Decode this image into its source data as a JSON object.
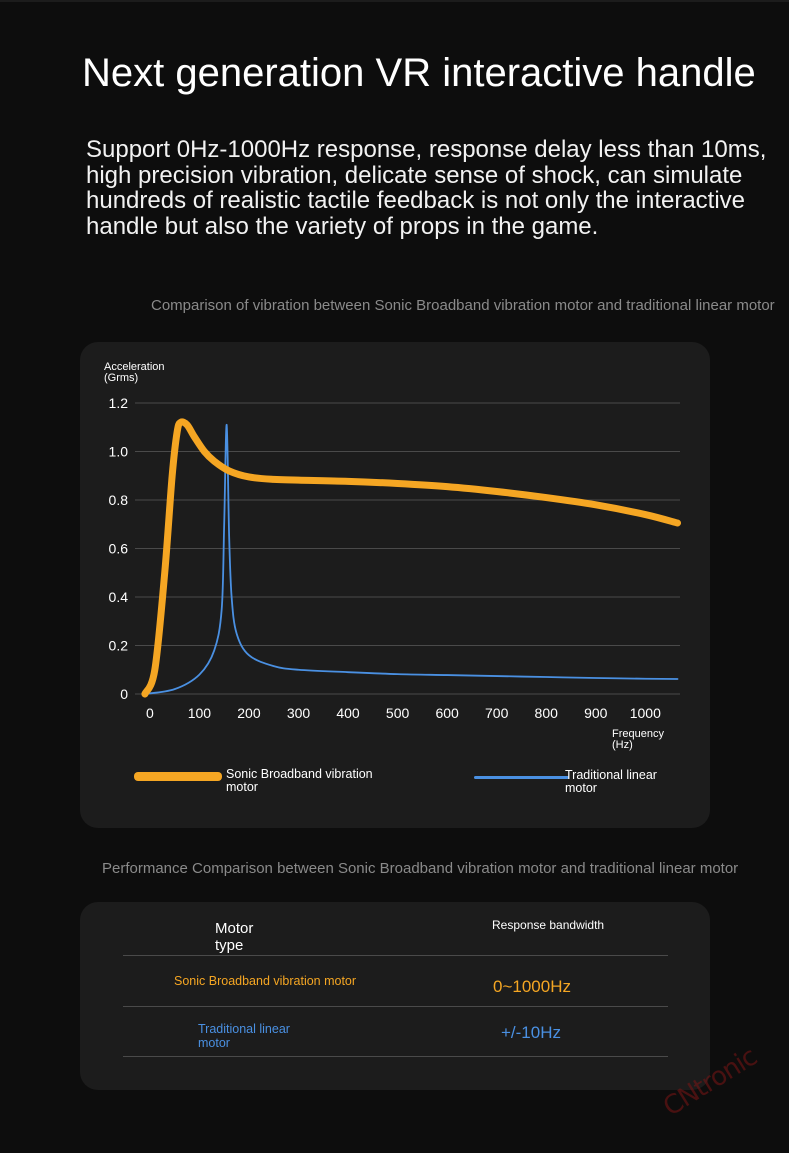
{
  "header": {
    "title": "Next generation VR interactive handle",
    "description": "Support 0Hz-1000Hz response, response delay less than 10ms, high precision vibration, delicate sense of shock, can simulate hundreds of realistic tactile feedback is not only the interactive handle but also the variety of props in the game."
  },
  "chart_section": {
    "caption": "Comparison of vibration between Sonic Broadband vibration motor and traditional linear motor"
  },
  "chart_data": {
    "type": "line",
    "ylabel": "Acceleration (Grms)",
    "xlabel": "Frequency (Hz)",
    "xlim": [
      -30,
      1070
    ],
    "ylim": [
      0,
      1.2
    ],
    "x_ticks": [
      "0",
      "100",
      "200",
      "300",
      "400",
      "500",
      "600",
      "700",
      "800",
      "900",
      "1000"
    ],
    "y_ticks": [
      "0",
      "0.2",
      "0.4",
      "0.6",
      "0.8",
      "1.0",
      "1.2"
    ],
    "grid": "horizontal",
    "legend_position": "bottom",
    "series": [
      {
        "name": "Sonic Broadband vibration motor",
        "color": "#f5a623",
        "x": [
          -10,
          10,
          30,
          45,
          55,
          62,
          75,
          90,
          110,
          130,
          160,
          200,
          250,
          300,
          400,
          500,
          600,
          700,
          800,
          900,
          1000,
          1065
        ],
        "y": [
          0.0,
          0.1,
          0.5,
          0.9,
          1.08,
          1.12,
          1.11,
          1.06,
          1.0,
          0.96,
          0.92,
          0.895,
          0.885,
          0.882,
          0.877,
          0.868,
          0.855,
          0.835,
          0.81,
          0.78,
          0.74,
          0.705
        ]
      },
      {
        "name": "Traditional linear motor",
        "color": "#4a90e2",
        "x": [
          -10,
          50,
          100,
          130,
          145,
          150,
          155,
          160,
          165,
          175,
          200,
          250,
          300,
          400,
          500,
          600,
          700,
          800,
          900,
          1000,
          1065
        ],
        "y": [
          0.0,
          0.02,
          0.08,
          0.18,
          0.35,
          0.7,
          1.11,
          0.65,
          0.4,
          0.25,
          0.16,
          0.115,
          0.1,
          0.09,
          0.082,
          0.078,
          0.074,
          0.07,
          0.066,
          0.063,
          0.062
        ]
      }
    ]
  },
  "legend": {
    "sonic_label": "Sonic Broadband vibration motor",
    "linear_label": "Traditional linear motor"
  },
  "axis_labels": {
    "y_line1": "Acceleration",
    "y_line2": "(Grms)",
    "x_line1": "Frequency",
    "x_line2": "(Hz)"
  },
  "performance": {
    "caption": "Performance Comparison between Sonic Broadband vibration motor and traditional linear motor",
    "col_type": "Motor type",
    "col_bandwidth": "Response bandwidth",
    "rows": [
      {
        "type": "Sonic Broadband vibration motor",
        "bandwidth": "0~1000Hz",
        "color": "#f5a623"
      },
      {
        "type": "Traditional linear motor",
        "bandwidth": "+/-10Hz",
        "color": "#4a90e2"
      }
    ]
  },
  "watermark": "CNtronic"
}
